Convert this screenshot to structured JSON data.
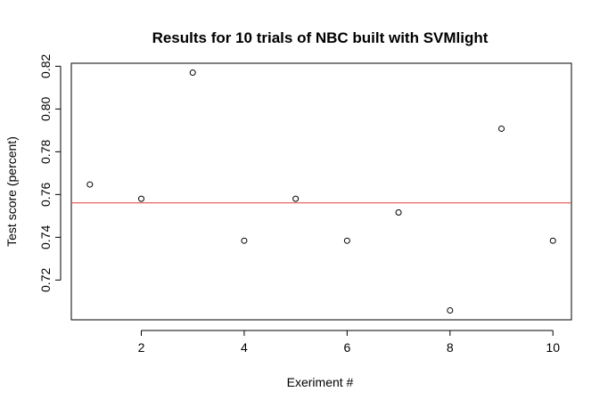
{
  "chart_data": {
    "type": "scatter",
    "title": "Results for 10 trials of NBC built with SVMlight",
    "xlabel": "Exeriment #",
    "ylabel": "Test score (percent)",
    "x": [
      1,
      2,
      3,
      4,
      5,
      6,
      7,
      8,
      9,
      10
    ],
    "y": [
      0.7647,
      0.758,
      0.817,
      0.7384,
      0.758,
      0.7384,
      0.7516,
      0.7058,
      0.7908,
      0.7384
    ],
    "xlim": [
      0.64,
      10.36
    ],
    "ylim": [
      0.7014,
      0.8214
    ],
    "xticks": [
      2,
      4,
      6,
      8,
      10
    ],
    "yticks": [
      0.72,
      0.74,
      0.76,
      0.78,
      0.8,
      0.82
    ],
    "xtick_labels": [
      "2",
      "4",
      "6",
      "8",
      "10"
    ],
    "ytick_labels": [
      "0.72",
      "0.74",
      "0.76",
      "0.78",
      "0.80",
      "0.82"
    ],
    "reference_line": {
      "orientation": "horizontal",
      "value": 0.7561,
      "color": "#e0413a"
    },
    "point_color": "#000000",
    "grid": false,
    "legend": "none"
  }
}
